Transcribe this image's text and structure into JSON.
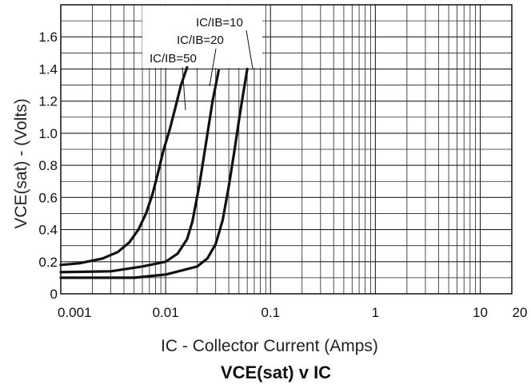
{
  "chart_data": {
    "type": "line",
    "title": "VCE(sat) v IC",
    "xlabel": "IC - Collector Current (Amps)",
    "ylabel": "VCE(sat) - (Volts)",
    "xscale": "log",
    "xlim": [
      0.001,
      20
    ],
    "ylim": [
      0,
      1.8
    ],
    "x_ticks": [
      "0.001",
      "0.01",
      "0.1",
      "1",
      "10",
      "20"
    ],
    "y_ticks": [
      "0",
      "0.2",
      "0.4",
      "0.6",
      "0.8",
      "1.0",
      "1.2",
      "1.4",
      "1.6"
    ],
    "grid": true,
    "series": [
      {
        "name": "IC/IB=50",
        "x": [
          0.001,
          0.0015,
          0.0025,
          0.0035,
          0.0045,
          0.0055,
          0.0065,
          0.0075,
          0.0085,
          0.0095,
          0.011,
          0.0125,
          0.014,
          0.016
        ],
        "y": [
          0.18,
          0.19,
          0.22,
          0.26,
          0.32,
          0.4,
          0.5,
          0.62,
          0.76,
          0.89,
          1.03,
          1.17,
          1.3,
          1.41
        ]
      },
      {
        "name": "IC/IB=20",
        "x": [
          0.001,
          0.003,
          0.006,
          0.01,
          0.013,
          0.016,
          0.018,
          0.021,
          0.024,
          0.028,
          0.032
        ],
        "y": [
          0.135,
          0.14,
          0.17,
          0.2,
          0.25,
          0.34,
          0.45,
          0.68,
          0.92,
          1.2,
          1.39
        ]
      },
      {
        "name": "IC/IB=10",
        "x": [
          0.001,
          0.005,
          0.01,
          0.02,
          0.025,
          0.03,
          0.035,
          0.04,
          0.045,
          0.05,
          0.055,
          0.06
        ],
        "y": [
          0.1,
          0.1,
          0.12,
          0.17,
          0.22,
          0.31,
          0.46,
          0.67,
          0.88,
          1.08,
          1.25,
          1.4
        ]
      }
    ]
  }
}
